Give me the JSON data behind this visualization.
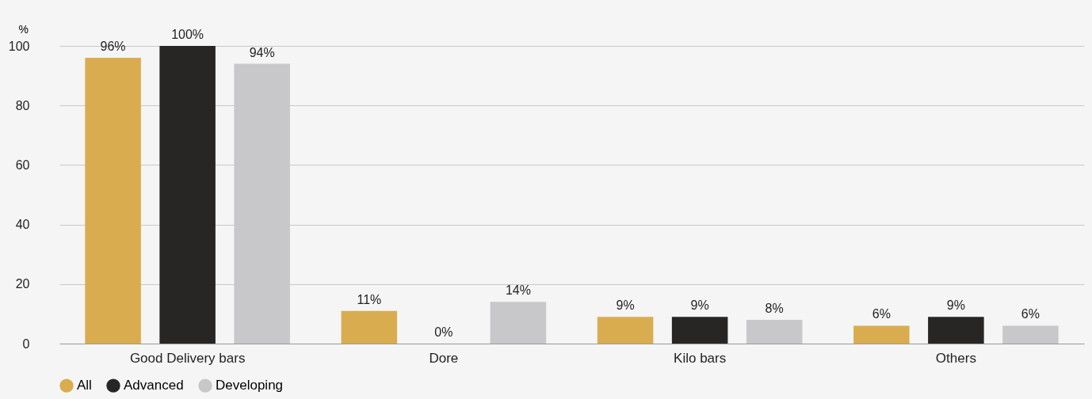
{
  "chart_data": {
    "type": "bar",
    "ylabel": "%",
    "categories": [
      "Good Delivery bars",
      "Dore",
      "Kilo bars",
      "Others"
    ],
    "series": [
      {
        "name": "All",
        "color": "#d9ad4f",
        "values": [
          96,
          11,
          9,
          6
        ],
        "value_labels": [
          "96%",
          "11%",
          "9%",
          "6%"
        ]
      },
      {
        "name": "Advanced",
        "color": "#282624",
        "values": [
          100,
          0,
          9,
          9
        ],
        "value_labels": [
          "100%",
          "0%",
          "9%",
          "9%"
        ]
      },
      {
        "name": "Developing",
        "color": "#c8c8ca",
        "values": [
          94,
          14,
          8,
          6
        ],
        "value_labels": [
          "94%",
          "14%",
          "8%",
          "6%"
        ]
      }
    ],
    "ylim": [
      0,
      100
    ],
    "yticks": [
      0,
      20,
      40,
      60,
      80,
      100
    ],
    "grid": "y",
    "legend": "bottom left"
  }
}
